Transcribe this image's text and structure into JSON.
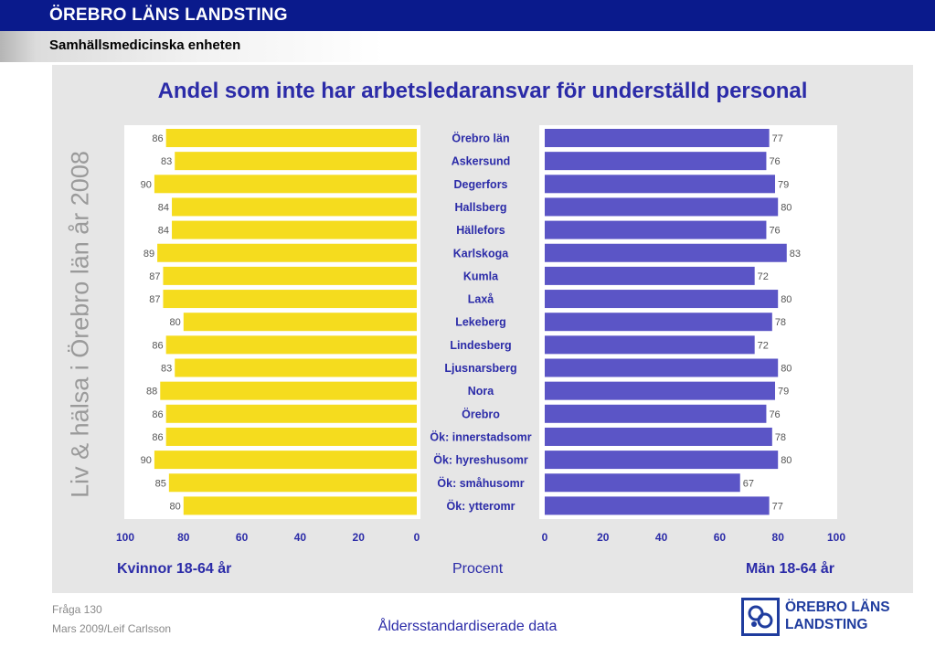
{
  "header": {
    "org": "ÖREBRO LÄNS LANDSTING",
    "unit": "Samhällsmedicinska enheten"
  },
  "side_text": "Liv & hälsa i Örebro län år 2008",
  "colors": {
    "women_bar": "#f5dc1e",
    "men_bar": "#5b55c6",
    "title_text": "#2b2ba8",
    "header_bar": "#0a1a8c"
  },
  "chart_data": {
    "type": "bar",
    "orientation": "horizontal",
    "layout": "back-to-back",
    "title": "Andel som inte har arbetsledaransvar för underställd personal",
    "categories": [
      "Örebro län",
      "Askersund",
      "Degerfors",
      "Hallsberg",
      "Hällefors",
      "Karlskoga",
      "Kumla",
      "Laxå",
      "Lekeberg",
      "Lindesberg",
      "Ljusnarsberg",
      "Nora",
      "Örebro",
      "Ök: innerstadsomr",
      "Ök: hyreshusomr",
      "Ök: småhusomr",
      "Ök: ytteromr"
    ],
    "series": [
      {
        "name": "Kvinnor 18-64 år",
        "values": [
          86,
          83,
          90,
          84,
          84,
          89,
          87,
          87,
          80,
          86,
          83,
          88,
          86,
          86,
          90,
          85,
          80
        ]
      },
      {
        "name": "Män 18-64 år",
        "values": [
          77,
          76,
          79,
          80,
          76,
          83,
          72,
          80,
          78,
          72,
          80,
          79,
          76,
          78,
          80,
          67,
          77
        ]
      }
    ],
    "xlabel": "Procent",
    "xlim": [
      0,
      100
    ],
    "left_ticks": [
      "100",
      "80",
      "60",
      "40",
      "20",
      "0"
    ],
    "right_ticks": [
      "0",
      "20",
      "40",
      "60",
      "80",
      "100"
    ],
    "grid": false,
    "data_labels": true
  },
  "footer": {
    "fraga": "Fråga 130",
    "date_author": "Mars 2009/Leif Carlsson",
    "note": "Åldersstandardiserade data"
  },
  "logo": {
    "line1": "ÖREBRO LÄNS",
    "line2": "LANDSTING",
    "icon": "landsting-logo-icon"
  }
}
